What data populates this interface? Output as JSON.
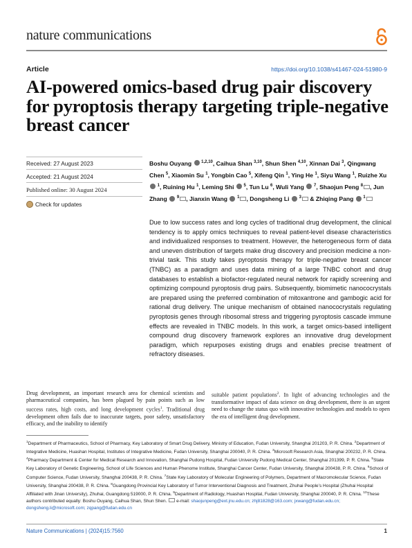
{
  "header": {
    "journal": "nature communications",
    "article_type": "Article",
    "doi": "https://doi.org/10.1038/s41467-024-51980-9"
  },
  "title": "AI-powered omics-based drug pair discovery for pyroptosis therapy targeting triple-negative breast cancer",
  "dates": {
    "received": "Received: 27 August 2023",
    "accepted": "Accepted: 21 August 2024",
    "published": "Published online: 30 August 2024",
    "check_updates": "Check for updates"
  },
  "authors": [
    {
      "name": "Boshu Ouyang",
      "sup": "1,2,10",
      "orcid": true,
      "mail": false
    },
    {
      "name": "Caihua Shan",
      "sup": "3,10",
      "orcid": false,
      "mail": false
    },
    {
      "name": "Shun Shen",
      "sup": "4,10",
      "orcid": false,
      "mail": false
    },
    {
      "name": "Xinnan Dai",
      "sup": "3",
      "orcid": false,
      "mail": false
    },
    {
      "name": "Qingwang Chen",
      "sup": "5",
      "orcid": false,
      "mail": false
    },
    {
      "name": "Xiaomin Su",
      "sup": "1",
      "orcid": false,
      "mail": false
    },
    {
      "name": "Yongbin Cao",
      "sup": "5",
      "orcid": false,
      "mail": false
    },
    {
      "name": "Xifeng Qin",
      "sup": "1",
      "orcid": false,
      "mail": false
    },
    {
      "name": "Ying He",
      "sup": "1",
      "orcid": false,
      "mail": false
    },
    {
      "name": "Siyu Wang",
      "sup": "1",
      "orcid": false,
      "mail": false
    },
    {
      "name": "Ruizhe Xu",
      "sup": "1",
      "orcid": true,
      "mail": false
    },
    {
      "name": "Ruining Hu",
      "sup": "1",
      "orcid": false,
      "mail": false
    },
    {
      "name": "Leming Shi",
      "sup": "5",
      "orcid": true,
      "mail": false
    },
    {
      "name": "Tun Lu",
      "sup": "6",
      "orcid": false,
      "mail": false
    },
    {
      "name": "Wuli Yang",
      "sup": "7",
      "orcid": true,
      "mail": false
    },
    {
      "name": "Shaojun Peng",
      "sup": "8",
      "orcid": false,
      "mail": true
    },
    {
      "name": "Jun Zhang",
      "sup": "9",
      "orcid": true,
      "mail": true
    },
    {
      "name": "Jianxin Wang",
      "sup": "1",
      "orcid": true,
      "mail": true
    },
    {
      "name": "Dongsheng Li",
      "sup": "3",
      "orcid": true,
      "mail": true
    },
    {
      "name": "Zhiqing Pang",
      "sup": "1",
      "orcid": true,
      "mail": true
    }
  ],
  "abstract": "Due to low success rates and long cycles of traditional drug development, the clinical tendency is to apply omics techniques to reveal patient-level disease characteristics and individualized responses to treatment. However, the heterogeneous form of data and uneven distribution of targets make drug discovery and precision medicine a non-trivial task. This study takes pyroptosis therapy for triple-negative breast cancer (TNBC) as a paradigm and uses data mining of a large TNBC cohort and drug databases to establish a biofactor-regulated neural network for rapidly screening and optimizing compound pyroptosis drug pairs. Subsequently, biomimetic nanococrystals are prepared using the preferred combination of mitoxantrone and gambogic acid for rational drug delivery. The unique mechanism of obtained nanococrystals regulating pyroptosis genes through ribosomal stress and triggering pyroptosis cascade immune effects are revealed in TNBC models. In this work, a target omics-based intelligent compound drug discovery framework explores an innovative drug development paradigm, which repurposes existing drugs and enables precise treatment of refractory diseases.",
  "body": {
    "left": "Drug development, an important research area for chemical scientists and pharmaceutical companies, has been plagued by pain points such as low success rates, high costs, and long development cycles",
    "left_sup": "1",
    "left_cont": ". Traditional drug development often fails due to inaccurate targets, poor safety, unsatisfactory efficacy, and the inability to identify",
    "right": "suitable patient populations",
    "right_sup": "2",
    "right_cont": ". In light of advancing technologies and the transformative impact of data science on drug development, there is an urgent need to change the status quo with innovative technologies and models to open the era of intelligent drug development."
  },
  "affiliations": [
    {
      "sup": "1",
      "text": "Department of Pharmaceutics, School of Pharmacy, Key Laboratory of Smart Drug Delivery, Ministry of Education, Fudan University, Shanghai 201203, P. R. China."
    },
    {
      "sup": "2",
      "text": "Department of Integrative Medicine, Huashan Hospital, Institutes of Integrative Medicine, Fudan University, Shanghai 200040, P. R. China."
    },
    {
      "sup": "3",
      "text": "Microsoft Research Asia, Shanghai 200232, P. R. China."
    },
    {
      "sup": "4",
      "text": "Pharmacy Department & Center for Medical Research and Innovation, Shanghai Pudong Hospital, Fudan University Pudong Medical Center, Shanghai 201399, P. R. China."
    },
    {
      "sup": "5",
      "text": "State Key Laboratory of Genetic Engineering, School of Life Sciences and Human Phenome Institute, Shanghai Cancer Center, Fudan University, Shanghai 200438, P. R. China."
    },
    {
      "sup": "6",
      "text": "School of Computer Science, Fudan University, Shanghai 200438, P. R. China."
    },
    {
      "sup": "7",
      "text": "State Key Laboratory of Molecular Engineering of Polymers, Department of Macromolecular Science, Fudan University, Shanghai 200438, P. R. China."
    },
    {
      "sup": "8",
      "text": "Guangdong Provincial Key Laboratory of Tumor Interventional Diagnosis and Treatment, Zhuhai People’s Hospital (Zhuhai Hospital Affiliated with Jinan University), Zhuhai, Guangdong 519000, P. R. China."
    },
    {
      "sup": "9",
      "text": "Department of Radiology, Huashan Hospital, Fudan University, Shanghai 200040, P. R. China."
    },
    {
      "sup": "10",
      "text": "These authors contributed equally: Boshu Ouyang, Caihua Shan, Shun Shen."
    }
  ],
  "email_label": "e-mail:",
  "emails": "shaojunpeng@ext.jnu.edu.cn; zhj81828@163.com; jxwang@fudan.edu.cn; dongsheng.li@microsoft.com; zqpang@fudan.edu.cn",
  "footer": {
    "journal_ref": "Nature Communications",
    "volume": "(2024)15:7560",
    "page": "1"
  },
  "colors": {
    "link": "#1f5fb5",
    "open_access": "#f07b1e"
  },
  "icons": [
    "open-access-icon",
    "orcid-icon",
    "mail-icon",
    "check-updates-icon"
  ]
}
